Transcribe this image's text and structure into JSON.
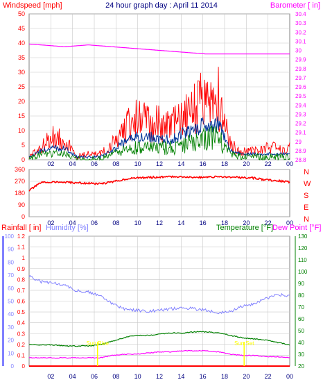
{
  "page": {
    "title": "24 hour graph day : April 11 2014"
  },
  "colors": {
    "wind_speed": "#ff0000",
    "wind_avg": "#003399",
    "wind_gust_low": "#008000",
    "barometer": "#ff00ff",
    "wind_dir": "#ff0000",
    "rainfall": "#ff0000",
    "humidity": "#8080ff",
    "temperature": "#008000",
    "dew_point": "#ff00ff",
    "sun_marker": "#ffff00",
    "axis_red": "#ff0000",
    "axis_blue": "#000080",
    "axis_green": "#008000",
    "grid": "#c8c8c8"
  },
  "chart_data": [
    {
      "type": "line",
      "title": "24 hour graph day : April 11 2014",
      "x": [
        "02",
        "04",
        "06",
        "08",
        "10",
        "12",
        "14",
        "16",
        "18",
        "20",
        "22",
        "00"
      ],
      "left_axis": {
        "label": "Windspeed [mph]",
        "ylim": [
          0,
          50
        ],
        "ticks": [
          "0",
          "5",
          "10",
          "15",
          "20",
          "25",
          "30",
          "35",
          "40",
          "45",
          "50"
        ]
      },
      "right_axis": {
        "label": "Barometer [ in]",
        "ylim": [
          28.8,
          30.4
        ],
        "ticks": [
          "28.8",
          "28.9",
          "29",
          "29.1",
          "29.2",
          "29.3",
          "29.4",
          "29.5",
          "29.6",
          "29.7",
          "29.8",
          "29.9",
          "30",
          "30.1",
          "30.2",
          "30.3",
          "30.4"
        ]
      },
      "series": [
        {
          "values_by_hour": [
            1,
            4,
            8,
            7,
            1,
            2,
            2,
            5,
            10,
            14,
            13,
            12,
            11,
            15,
            17,
            22,
            21,
            5,
            3,
            3,
            4,
            4,
            4
          ]
        },
        {
          "values_by_hour": [
            1,
            3,
            4,
            4,
            1,
            1,
            1,
            3,
            6,
            8,
            8,
            7,
            7,
            9,
            10,
            13,
            12,
            3,
            2,
            2,
            2,
            2,
            2
          ]
        },
        {
          "values_by_hour": [
            0,
            2,
            2,
            2,
            0,
            0,
            0,
            2,
            3,
            4,
            4,
            4,
            4,
            5,
            6,
            8,
            7,
            2,
            1,
            1,
            1,
            1,
            1
          ]
        },
        {
          "axis": "right",
          "values_by_hour": [
            30.07,
            30.06,
            30.05,
            30.04,
            30.05,
            30.06,
            30.05,
            30.04,
            30.03,
            30.02,
            30.01,
            30.0,
            29.99,
            29.98,
            29.97,
            29.96,
            29.96,
            29.96,
            29.96,
            29.96,
            29.96,
            29.96,
            29.96
          ]
        }
      ]
    },
    {
      "type": "line",
      "x": [
        "02",
        "04",
        "06",
        "08",
        "10",
        "12",
        "14",
        "16",
        "18",
        "20",
        "22",
        "00"
      ],
      "left_axis": {
        "ylim": [
          0,
          360
        ],
        "ticks": [
          "0",
          "90",
          "180",
          "270",
          "360"
        ]
      },
      "right_axis": {
        "ticks": [
          "N",
          "W",
          "S",
          "E",
          "N"
        ]
      },
      "series": [
        {
          "values_by_hour": [
            200,
            260,
            265,
            262,
            258,
            255,
            250,
            265,
            285,
            295,
            300,
            302,
            305,
            305,
            300,
            300,
            305,
            302,
            298,
            295,
            280,
            275,
            265
          ]
        }
      ]
    },
    {
      "type": "line",
      "x": [
        "02",
        "04",
        "06",
        "08",
        "10",
        "12",
        "14",
        "16",
        "18",
        "20",
        "22",
        "00"
      ],
      "left_axis_1": {
        "label": "Rainfall [ in]",
        "ylim": [
          0,
          1.2
        ],
        "ticks": [
          "0",
          "0.1",
          "0.2",
          "0.3",
          "0.4",
          "0.5",
          "0.6",
          "0.7",
          "0.8",
          "0.9",
          "1",
          "1.1",
          "1.2"
        ]
      },
      "left_axis_2": {
        "label": "Humidity [%]",
        "ylim": [
          0,
          100
        ],
        "ticks": [
          "0",
          "10",
          "20",
          "30",
          "40",
          "50",
          "60",
          "70",
          "80",
          "90",
          "100"
        ]
      },
      "right_axis": {
        "label": "Temperature [°F]",
        "label2": "Dew Point [°F]",
        "ylim": [
          20,
          130
        ],
        "ticks": [
          "20",
          "30",
          "40",
          "50",
          "60",
          "70",
          "80",
          "90",
          "100",
          "110",
          "120",
          "130"
        ]
      },
      "annotations": [
        "Sun Rise",
        "Sun Set"
      ],
      "series": [
        {
          "values_by_hour": [
            0,
            0,
            0,
            0,
            0,
            0,
            0,
            0,
            0,
            0,
            0,
            0,
            0,
            0,
            0,
            0,
            0,
            0,
            0,
            0,
            0,
            0,
            0
          ]
        },
        {
          "values_by_hour": [
            69,
            65,
            64,
            62,
            58,
            57,
            54,
            48,
            44,
            43,
            42,
            43,
            44,
            45,
            44,
            43,
            41,
            42,
            46,
            48,
            52,
            55,
            54
          ]
        },
        {
          "axis": "right",
          "values_by_hour": [
            38,
            38,
            38,
            37,
            37,
            37,
            38,
            41,
            44,
            46,
            46,
            47,
            48,
            48,
            49,
            49,
            48,
            46,
            44,
            43,
            42,
            40,
            38
          ]
        },
        {
          "axis": "right",
          "values_by_hour": [
            27,
            27,
            27,
            27,
            27,
            27,
            27,
            29,
            30,
            30,
            31,
            32,
            32,
            33,
            33,
            33,
            32,
            30,
            29,
            29,
            28,
            28,
            27
          ]
        }
      ]
    }
  ]
}
